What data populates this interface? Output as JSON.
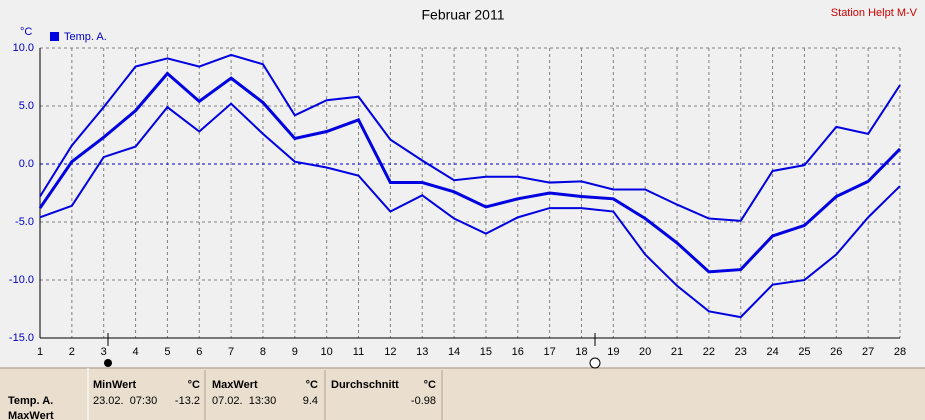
{
  "station": "Station Helpt M-V",
  "chart_data": {
    "type": "line",
    "title": "Februar 2011",
    "y_label": "°C",
    "x": [
      1,
      2,
      3,
      4,
      5,
      6,
      7,
      8,
      9,
      10,
      11,
      12,
      13,
      14,
      15,
      16,
      17,
      18,
      19,
      20,
      21,
      22,
      23,
      24,
      25,
      26,
      27,
      28
    ],
    "xlim": [
      1,
      28
    ],
    "xticks": [
      1,
      2,
      3,
      4,
      5,
      6,
      7,
      8,
      9,
      10,
      11,
      12,
      13,
      14,
      15,
      16,
      17,
      18,
      19,
      20,
      21,
      22,
      23,
      24,
      25,
      26,
      27,
      28
    ],
    "ylim": [
      -15,
      10
    ],
    "yticks": [
      {
        "value": -15,
        "label": "-15.0"
      },
      {
        "value": -10,
        "label": "-10.0"
      },
      {
        "value": -5,
        "label": "-5.0"
      },
      {
        "value": 0,
        "label": "0.0"
      },
      {
        "value": 5,
        "label": "5.0"
      },
      {
        "value": 10,
        "label": "10.0"
      }
    ],
    "grid": true,
    "series": [
      {
        "name": "Temp. A.",
        "color": "#0000e0",
        "values": [
          -3.8,
          0.2,
          2.3,
          4.6,
          7.8,
          5.4,
          7.4,
          5.3,
          2.2,
          2.8,
          3.8,
          -1.6,
          -1.6,
          -2.4,
          -3.7,
          -3.0,
          -2.5,
          -2.8,
          -3.0,
          -4.7,
          -6.8,
          -9.3,
          -9.1,
          -6.2,
          -5.3,
          -2.8,
          -1.5,
          1.3
        ]
      },
      {
        "color": "#0000e0",
        "values": [
          -2.8,
          1.6,
          4.9,
          8.4,
          9.1,
          8.4,
          9.4,
          8.6,
          4.2,
          5.5,
          5.8,
          2.1,
          0.3,
          -1.4,
          -1.1,
          -1.1,
          -1.6,
          -1.5,
          -2.2,
          -2.2,
          -3.5,
          -4.7,
          -4.9,
          -0.6,
          -0.1,
          3.2,
          2.6,
          6.8
        ]
      },
      {
        "color": "#0000e0",
        "values": [
          -4.6,
          -3.6,
          0.6,
          1.5,
          4.9,
          2.8,
          5.2,
          2.6,
          0.2,
          -0.3,
          -1.0,
          -4.1,
          -2.7,
          -4.7,
          -6.0,
          -4.6,
          -3.8,
          -3.8,
          -4.1,
          -7.8,
          -10.5,
          -12.7,
          -13.2,
          -10.4,
          -10.0,
          -7.8,
          -4.6,
          -1.9
        ]
      }
    ]
  },
  "summary": {
    "row_labels": [
      "Temp. A.",
      "MaxWert"
    ],
    "columns": [
      {
        "header": "MinWert",
        "unit": "°C",
        "date": "23.02.  07:30",
        "value": -13.2
      },
      {
        "header": "MaxWert",
        "unit": "°C",
        "date": "07.02.  13:30",
        "value": 9.4
      },
      {
        "header": "Durchschnitt",
        "unit": "°C",
        "value": -0.98
      }
    ]
  }
}
